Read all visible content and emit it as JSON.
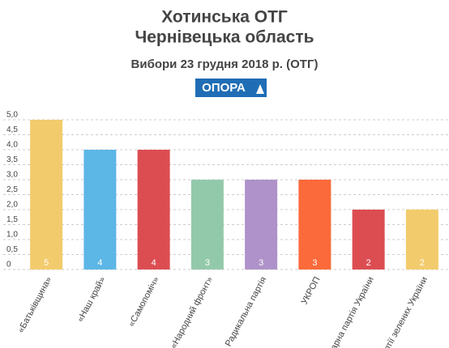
{
  "chart_data": {
    "type": "bar",
    "title": [
      "Хотинська ОТГ",
      "Чернівецька область"
    ],
    "subtitle": "Вибори 23 грудня 2018 р. (ОТГ)",
    "logo": "ОПОРА",
    "categories": [
      "«Батьківщина»",
      "«Наш край»",
      "«Самопоміч»",
      "«Народний фронт»",
      "Радикальна партія",
      "УКРОП",
      "Аграрна партія України",
      "Партії зелених України"
    ],
    "values": [
      5,
      4,
      4,
      3,
      3,
      3,
      2,
      2
    ],
    "colors": [
      "#f2cb6c",
      "#5cb6e6",
      "#dc4d52",
      "#93c9ab",
      "#ae92c9",
      "#fa6a3a",
      "#dc4d52",
      "#f2cb6c"
    ],
    "ylim": [
      0,
      5
    ],
    "yticks": [
      0,
      {
        "value": 0.5,
        "label": "0,5"
      },
      {
        "value": 1,
        "label": "1,0"
      },
      {
        "value": 1.5,
        "label": "1,5"
      },
      {
        "value": 2,
        "label": "2,0"
      },
      {
        "value": 2.5,
        "label": "2,5"
      },
      {
        "value": 3,
        "label": "3,0"
      },
      {
        "value": 3.5,
        "label": "3,5"
      },
      {
        "value": 4,
        "label": "4,0"
      },
      {
        "value": 4.5,
        "label": "4,5"
      },
      {
        "value": 5,
        "label": "5,0"
      }
    ],
    "grid": true
  }
}
